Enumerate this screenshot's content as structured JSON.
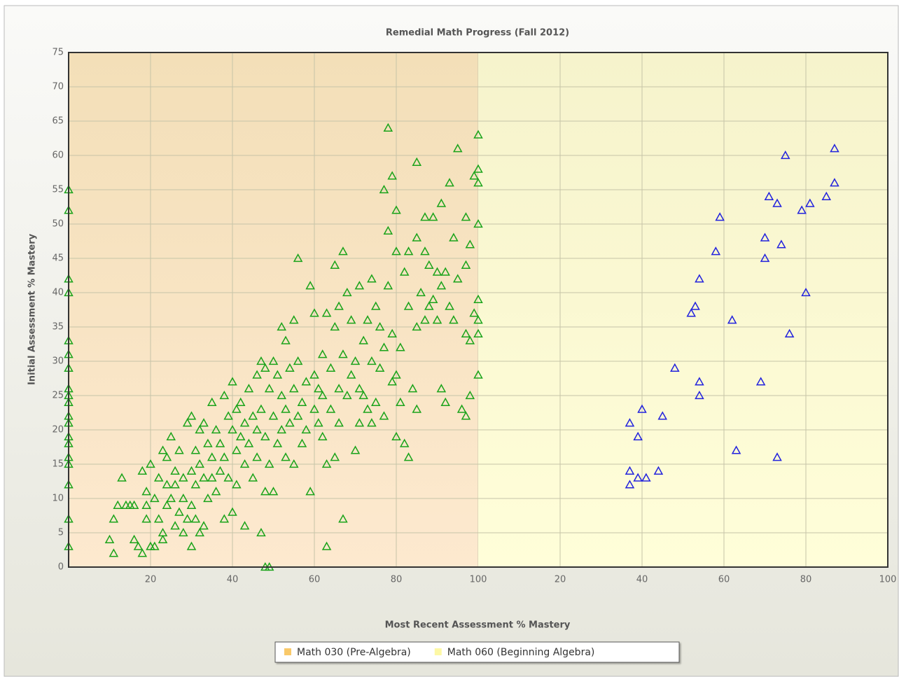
{
  "chart_data": {
    "type": "scatter",
    "title": "Remedial Math Progress (Fall 2012)",
    "x_label": "Most Recent Assessment % Mastery",
    "y_label": "Initial Assessment % Mastery",
    "ylim": [
      0,
      75
    ],
    "yticks": [
      0,
      5,
      10,
      15,
      20,
      25,
      30,
      35,
      40,
      45,
      50,
      55,
      60,
      65,
      70,
      75
    ],
    "grid": true,
    "series": [
      {
        "name": "Math 030 (Pre-Algebra)",
        "color": "#f9c96a",
        "marker_color": "#1aa31a",
        "xlim": [
          0,
          100
        ],
        "xticks": [
          20,
          40,
          60,
          80,
          100
        ],
        "x": [
          0,
          0,
          0,
          0,
          0,
          0,
          0,
          0,
          0,
          0,
          0,
          0,
          0,
          0,
          0,
          0,
          0,
          0,
          0,
          10,
          11,
          11,
          12,
          13,
          14,
          15,
          16,
          16,
          17,
          18,
          18,
          19,
          19,
          19,
          20,
          20,
          21,
          21,
          22,
          22,
          23,
          23,
          23,
          24,
          24,
          24,
          25,
          25,
          26,
          26,
          26,
          27,
          27,
          28,
          28,
          28,
          29,
          29,
          30,
          30,
          30,
          30,
          31,
          31,
          31,
          32,
          32,
          32,
          33,
          33,
          33,
          34,
          34,
          35,
          35,
          35,
          36,
          36,
          37,
          37,
          38,
          38,
          38,
          39,
          39,
          40,
          40,
          40,
          41,
          41,
          41,
          42,
          42,
          43,
          43,
          43,
          44,
          44,
          45,
          45,
          46,
          46,
          46,
          47,
          47,
          47,
          48,
          48,
          48,
          48,
          49,
          49,
          49,
          50,
          50,
          50,
          51,
          51,
          52,
          52,
          52,
          53,
          53,
          53,
          54,
          54,
          55,
          55,
          55,
          56,
          56,
          56,
          57,
          57,
          58,
          58,
          59,
          59,
          60,
          60,
          60,
          61,
          61,
          62,
          62,
          62,
          63,
          63,
          63,
          64,
          64,
          65,
          65,
          65,
          66,
          66,
          66,
          67,
          67,
          67,
          68,
          68,
          69,
          69,
          70,
          70,
          71,
          71,
          71,
          72,
          72,
          73,
          73,
          74,
          74,
          74,
          75,
          75,
          76,
          76,
          77,
          77,
          77,
          78,
          78,
          78,
          79,
          79,
          79,
          80,
          80,
          80,
          80,
          81,
          81,
          82,
          82,
          83,
          83,
          83,
          84,
          85,
          85,
          85,
          85,
          86,
          87,
          87,
          87,
          88,
          88,
          89,
          89,
          90,
          90,
          91,
          91,
          91,
          92,
          92,
          93,
          93,
          94,
          94,
          95,
          95,
          96,
          97,
          97,
          97,
          97,
          98,
          98,
          98,
          99,
          99,
          100,
          100,
          100,
          100,
          100,
          100,
          100,
          100
        ],
        "values": [
          55,
          52,
          42,
          40,
          33,
          31,
          29,
          26,
          25,
          24,
          22,
          21,
          19,
          18,
          16,
          15,
          12,
          7,
          3,
          4,
          2,
          7,
          9,
          13,
          9,
          9,
          9,
          4,
          3,
          2,
          14,
          7,
          9,
          11,
          15,
          3,
          3,
          10,
          13,
          7,
          17,
          5,
          4,
          12,
          9,
          16,
          19,
          10,
          14,
          6,
          12,
          8,
          17,
          5,
          13,
          10,
          21,
          7,
          22,
          14,
          9,
          3,
          17,
          12,
          7,
          15,
          20,
          5,
          13,
          6,
          21,
          18,
          10,
          24,
          16,
          13,
          20,
          11,
          18,
          14,
          25,
          7,
          16,
          22,
          13,
          27,
          20,
          8,
          17,
          23,
          12,
          24,
          19,
          21,
          6,
          15,
          26,
          18,
          22,
          13,
          28,
          20,
          16,
          30,
          23,
          5,
          29,
          19,
          11,
          0,
          0,
          26,
          15,
          30,
          22,
          11,
          28,
          18,
          35,
          25,
          20,
          33,
          23,
          16,
          29,
          21,
          36,
          26,
          15,
          45,
          30,
          22,
          24,
          18,
          27,
          20,
          41,
          11,
          37,
          28,
          23,
          26,
          21,
          31,
          25,
          19,
          37,
          15,
          3,
          29,
          23,
          44,
          35,
          16,
          38,
          26,
          21,
          46,
          7,
          31,
          40,
          25,
          36,
          28,
          30,
          17,
          41,
          26,
          21,
          33,
          25,
          36,
          23,
          42,
          30,
          21,
          38,
          24,
          35,
          29,
          55,
          32,
          22,
          64,
          49,
          41,
          57,
          34,
          27,
          52,
          46,
          28,
          19,
          32,
          24,
          43,
          18,
          46,
          38,
          16,
          26,
          59,
          48,
          35,
          23,
          40,
          51,
          46,
          36,
          44,
          38,
          51,
          39,
          43,
          36,
          53,
          41,
          26,
          43,
          24,
          56,
          38,
          48,
          36,
          61,
          42,
          23,
          51,
          44,
          34,
          22,
          47,
          33,
          25,
          57,
          37,
          63,
          58,
          56,
          50,
          39,
          36,
          34,
          28
        ]
      },
      {
        "name": "Math 060 (Beginning Algebra)",
        "color": "#fdf8a5",
        "marker_color": "#2222dd",
        "xlim": [
          0,
          100
        ],
        "xticks": [
          20,
          40,
          60,
          80,
          100
        ],
        "x": [
          37,
          37,
          37,
          39,
          39,
          40,
          41,
          44,
          45,
          48,
          52,
          53,
          54,
          54,
          54,
          58,
          59,
          62,
          63,
          69,
          70,
          70,
          71,
          73,
          73,
          74,
          75,
          76,
          79,
          80,
          81,
          85,
          87,
          87
        ],
        "values": [
          21,
          14,
          12,
          19,
          13,
          23,
          13,
          14,
          22,
          29,
          37,
          38,
          42,
          27,
          25,
          46,
          51,
          36,
          17,
          27,
          48,
          45,
          54,
          53,
          16,
          47,
          60,
          34,
          52,
          40,
          53,
          54,
          61,
          56
        ]
      }
    ]
  }
}
